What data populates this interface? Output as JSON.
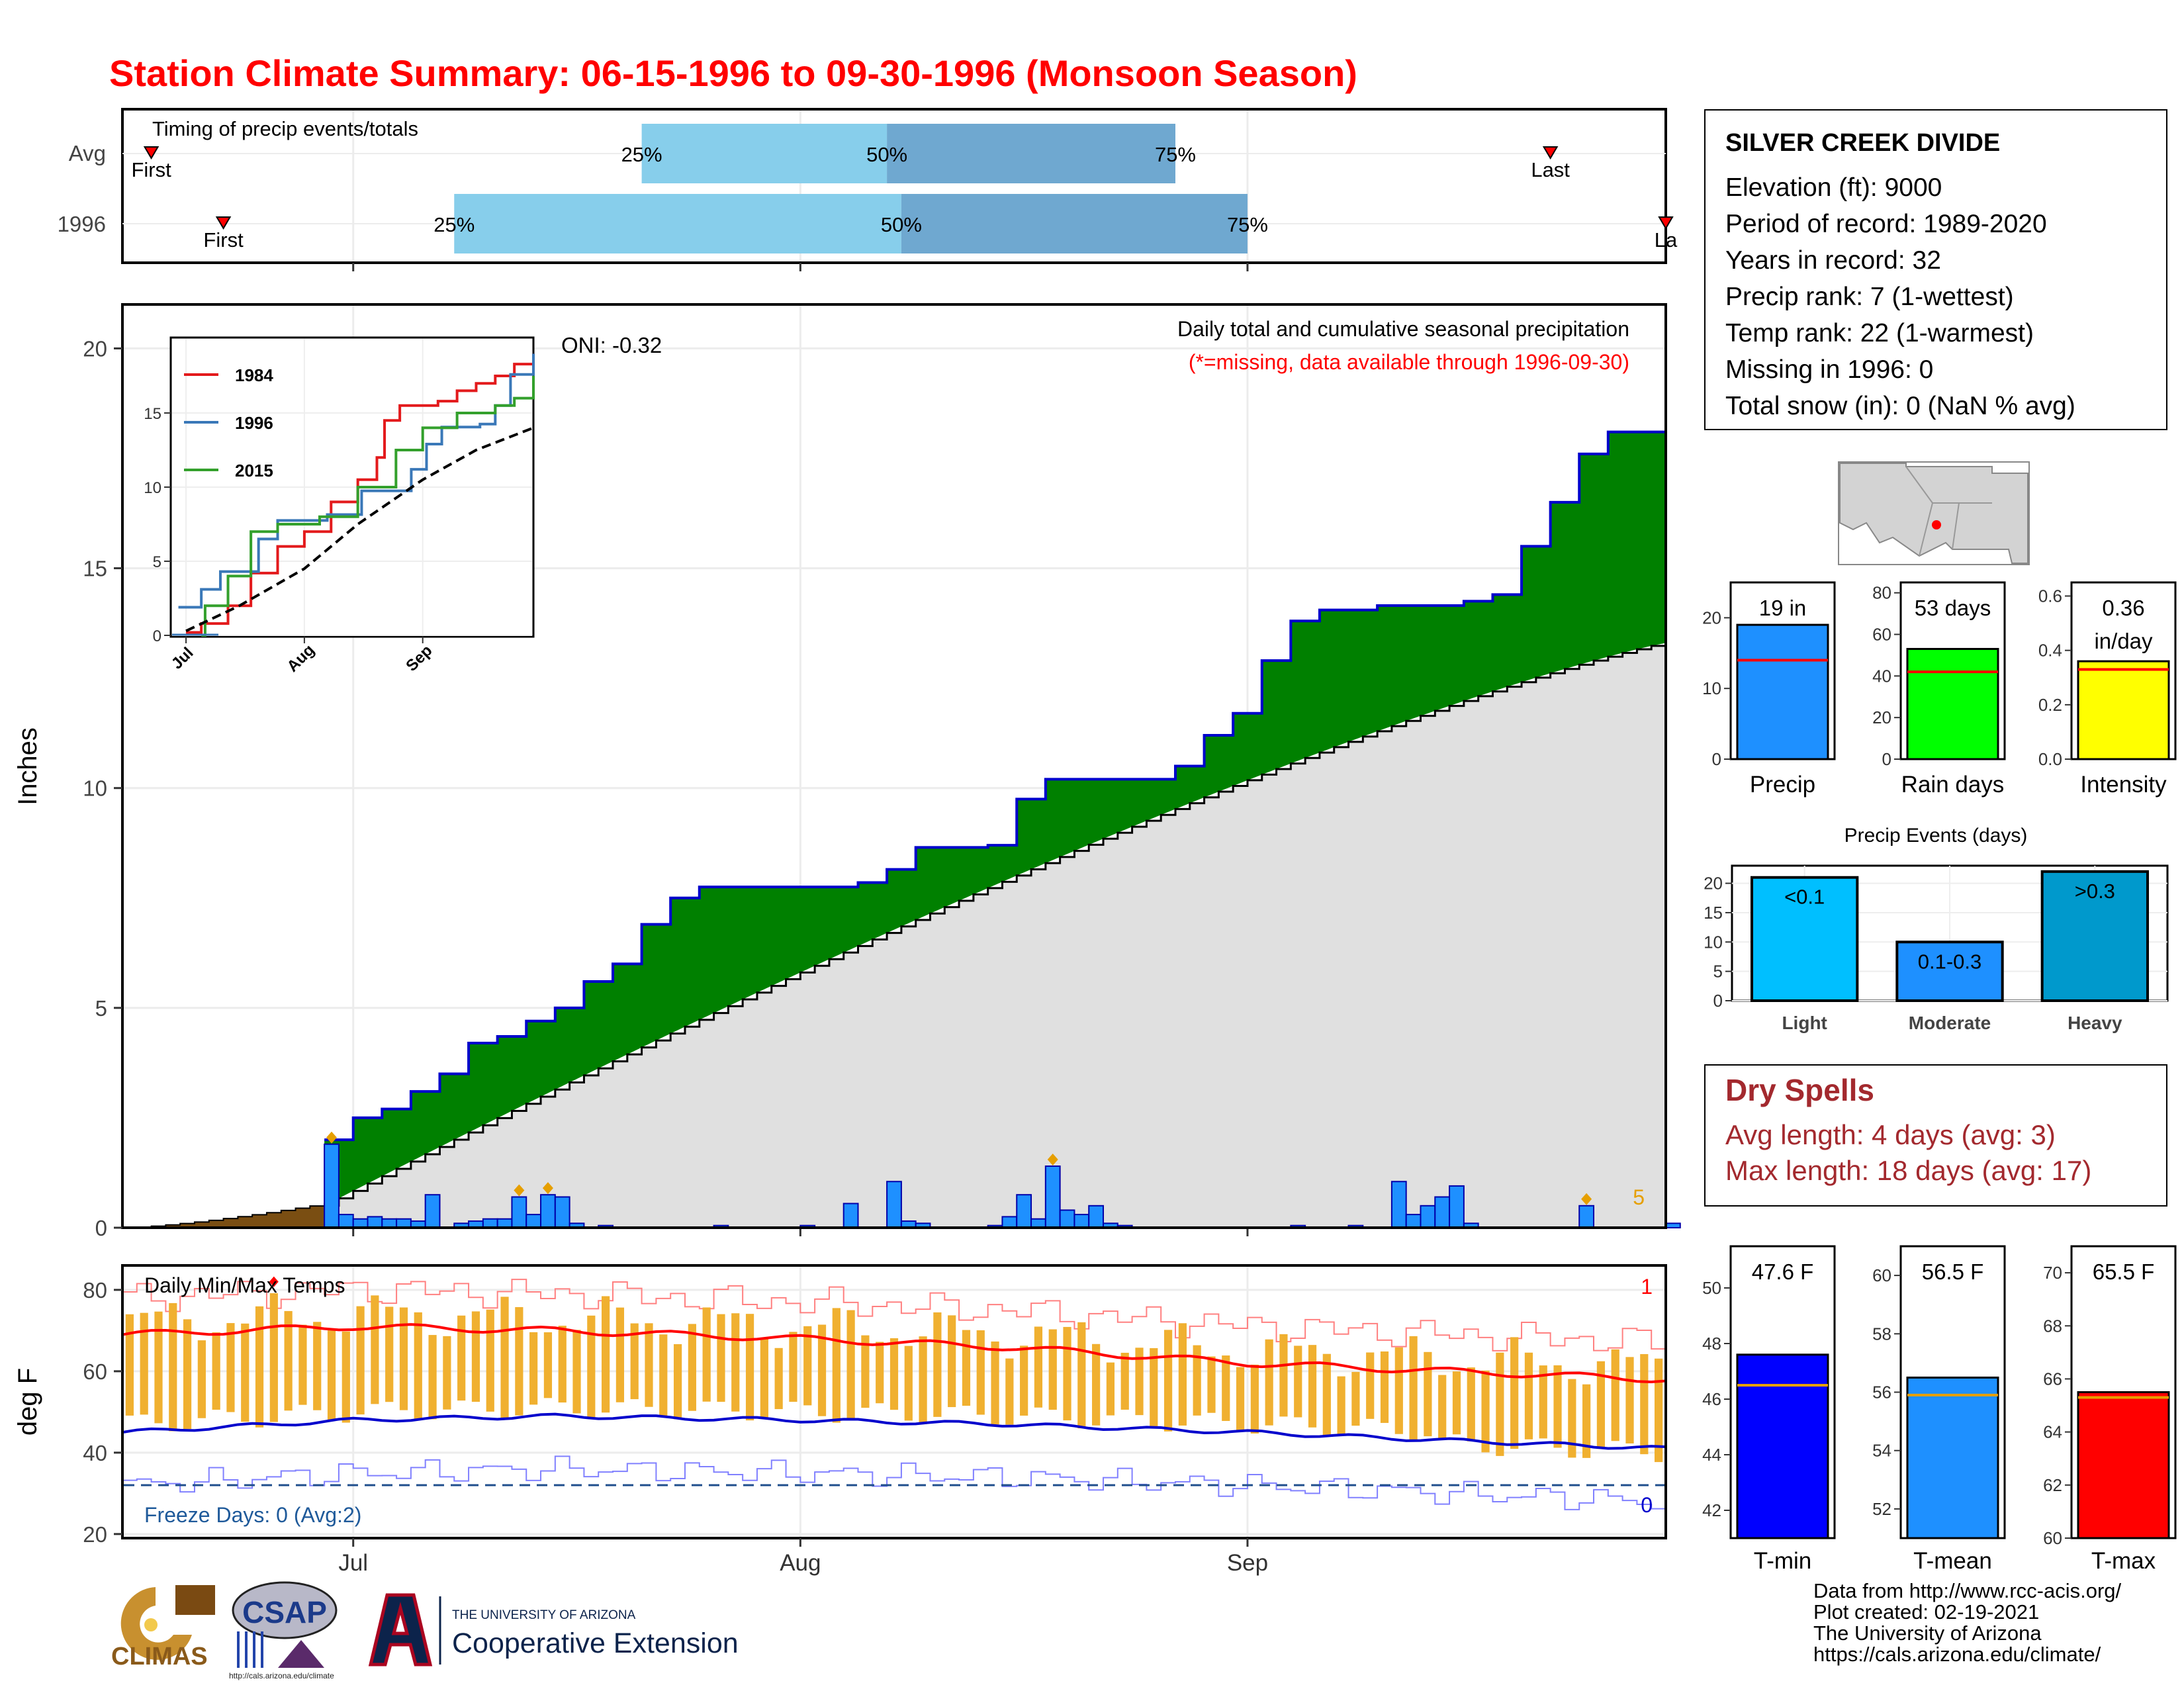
{
  "title": "Station Climate Summary: 06-15-1996 to 09-30-1996 (Monsoon Season)",
  "colors": {
    "title": "#ff0000",
    "green": "#008000",
    "blue_outline": "#0000cc",
    "avg_fill": "#e0e0e0",
    "bar_blue": "#1e90ff",
    "brown": "#7a4e12",
    "light_blue": "#87ceeb",
    "mid_blue": "#6fa8d0",
    "tmax_line": "#ff0000",
    "tmin_line": "#0000cc",
    "temp_bar": "#f0b030",
    "dry_red": "#a3292e"
  },
  "timing": {
    "title": "Timing of precip events/totals",
    "rows": [
      "Avg",
      "1996"
    ],
    "avg": {
      "first_date": "1996-06-17",
      "p25_date": "1996-07-21",
      "p50_date": "1996-08-07",
      "p75_date": "1996-08-27",
      "last_date": "1996-09-22",
      "first_label": "First",
      "last_label": "Last"
    },
    "y1996": {
      "first_date": "1996-06-22",
      "p25_date": "1996-07-08",
      "p50_date": "1996-08-08",
      "p75_date": "1996-09-01",
      "last_date": "1996-09-30",
      "first_label": "First",
      "last_label": "La"
    },
    "pct_labels": [
      "25%",
      "50%",
      "75%"
    ]
  },
  "precip": {
    "ylabel": "Inches",
    "subtitle": "Daily total and cumulative seasonal precipitation",
    "missing_note": "(*=missing, data available through 1996-09-30)",
    "oni": "ONI: -0.32",
    "count_label": "5",
    "yticks": [
      "0",
      "5",
      "10",
      "15",
      "20"
    ],
    "y_range": [
      0,
      21
    ],
    "avg_start": 0.5,
    "avg_end": 13.3,
    "pre_season_end": 0.55
  },
  "chart_data": [
    {
      "type": "area",
      "title": "Daily total and cumulative seasonal precipitation",
      "ylabel": "Inches",
      "xlim": [
        "1996-06-15",
        "1996-09-30"
      ],
      "ylim": [
        0,
        21
      ],
      "cumulative_1996": [
        [
          "1996-06-29",
          2.0
        ],
        [
          "1996-07-01",
          2.5
        ],
        [
          "1996-07-03",
          2.7
        ],
        [
          "1996-07-05",
          3.1
        ],
        [
          "1996-07-07",
          3.5
        ],
        [
          "1996-07-09",
          4.2
        ],
        [
          "1996-07-11",
          4.35
        ],
        [
          "1996-07-13",
          4.7
        ],
        [
          "1996-07-15",
          5.0
        ],
        [
          "1996-07-17",
          5.6
        ],
        [
          "1996-07-19",
          6.0
        ],
        [
          "1996-07-21",
          6.9
        ],
        [
          "1996-07-23",
          7.5
        ],
        [
          "1996-07-25",
          7.75
        ],
        [
          "1996-08-05",
          7.85
        ],
        [
          "1996-08-07",
          8.15
        ],
        [
          "1996-08-09",
          8.65
        ],
        [
          "1996-08-14",
          8.7
        ],
        [
          "1996-08-16",
          9.75
        ],
        [
          "1996-08-18",
          10.2
        ],
        [
          "1996-08-27",
          10.5
        ],
        [
          "1996-08-29",
          11.2
        ],
        [
          "1996-08-31",
          11.7
        ],
        [
          "1996-09-02",
          12.9
        ],
        [
          "1996-09-04",
          13.8
        ],
        [
          "1996-09-06",
          14.05
        ],
        [
          "1996-09-10",
          14.15
        ],
        [
          "1996-09-16",
          14.25
        ],
        [
          "1996-09-18",
          14.4
        ],
        [
          "1996-09-20",
          15.5
        ],
        [
          "1996-09-22",
          16.5
        ],
        [
          "1996-09-24",
          17.6
        ],
        [
          "1996-09-26",
          18.1
        ],
        [
          "1996-09-30",
          19.0
        ]
      ],
      "daily_1996": [
        [
          "1996-06-29",
          1.9
        ],
        [
          "1996-06-30",
          0.3
        ],
        [
          "1996-07-01",
          0.2
        ],
        [
          "1996-07-02",
          0.25
        ],
        [
          "1996-07-03",
          0.2
        ],
        [
          "1996-07-04",
          0.2
        ],
        [
          "1996-07-05",
          0.15
        ],
        [
          "1996-07-06",
          0.75
        ],
        [
          "1996-07-08",
          0.1
        ],
        [
          "1996-07-09",
          0.15
        ],
        [
          "1996-07-10",
          0.2
        ],
        [
          "1996-07-11",
          0.2
        ],
        [
          "1996-07-12",
          0.7
        ],
        [
          "1996-07-13",
          0.3
        ],
        [
          "1996-07-14",
          0.75
        ],
        [
          "1996-07-15",
          0.7
        ],
        [
          "1996-07-16",
          0.1
        ],
        [
          "1996-07-18",
          0.05
        ],
        [
          "1996-07-26",
          0.05
        ],
        [
          "1996-08-01",
          0.05
        ],
        [
          "1996-08-04",
          0.55
        ],
        [
          "1996-08-07",
          1.05
        ],
        [
          "1996-08-08",
          0.15
        ],
        [
          "1996-08-09",
          0.1
        ],
        [
          "1996-08-14",
          0.05
        ],
        [
          "1996-08-15",
          0.25
        ],
        [
          "1996-08-16",
          0.75
        ],
        [
          "1996-08-17",
          0.2
        ],
        [
          "1996-08-18",
          1.4
        ],
        [
          "1996-08-19",
          0.4
        ],
        [
          "1996-08-20",
          0.3
        ],
        [
          "1996-08-21",
          0.5
        ],
        [
          "1996-08-22",
          0.1
        ],
        [
          "1996-08-23",
          0.05
        ],
        [
          "1996-09-04",
          0.05
        ],
        [
          "1996-09-08",
          0.05
        ],
        [
          "1996-09-11",
          1.05
        ],
        [
          "1996-09-12",
          0.3
        ],
        [
          "1996-09-13",
          0.5
        ],
        [
          "1996-09-14",
          0.7
        ],
        [
          "1996-09-15",
          0.95
        ],
        [
          "1996-09-16",
          0.1
        ],
        [
          "1996-09-24",
          0.5
        ],
        [
          "1996-09-30",
          0.1
        ]
      ],
      "average_cumulative": [
        [
          "1996-06-29",
          0.5
        ],
        [
          "1996-09-30",
          13.3
        ]
      ]
    },
    {
      "type": "line",
      "xlabel": "",
      "ylabel": "",
      "ylim": [
        0,
        20
      ],
      "x_ticks": [
        "Jul",
        "Aug",
        "Sep"
      ],
      "y_ticks": [
        "0",
        "5",
        "10",
        "15"
      ],
      "legend": [
        "1984",
        "1996",
        "2015"
      ],
      "series": [
        {
          "name": "1984",
          "color": "#e31a1c",
          "values": [
            [
              "1996-07-01",
              0.2
            ],
            [
              "1996-07-05",
              0.8
            ],
            [
              "1996-07-12",
              2.0
            ],
            [
              "1996-07-18",
              4.2
            ],
            [
              "1996-07-25",
              6.0
            ],
            [
              "1996-08-01",
              7.0
            ],
            [
              "1996-08-08",
              9.0
            ],
            [
              "1996-08-15",
              10.5
            ],
            [
              "1996-08-20",
              12.0
            ],
            [
              "1996-08-22",
              14.5
            ],
            [
              "1996-08-26",
              15.5
            ],
            [
              "1996-09-05",
              15.8
            ],
            [
              "1996-09-10",
              16.5
            ],
            [
              "1996-09-15",
              17.0
            ],
            [
              "1996-09-20",
              17.5
            ],
            [
              "1996-09-25",
              18.3
            ],
            [
              "1996-09-30",
              19.0
            ]
          ]
        },
        {
          "name": "1996",
          "color": "#3a78b8",
          "values": [
            [
              "1996-06-29",
              1.9
            ],
            [
              "1996-07-05",
              3.1
            ],
            [
              "1996-07-10",
              4.3
            ],
            [
              "1996-07-20",
              6.5
            ],
            [
              "1996-07-25",
              7.75
            ],
            [
              "1996-08-07",
              8.15
            ],
            [
              "1996-08-16",
              9.75
            ],
            [
              "1996-08-29",
              11.2
            ],
            [
              "1996-09-02",
              12.9
            ],
            [
              "1996-09-06",
              14.05
            ],
            [
              "1996-09-16",
              14.25
            ],
            [
              "1996-09-20",
              15.5
            ],
            [
              "1996-09-24",
              17.6
            ],
            [
              "1996-09-30",
              19.0
            ]
          ]
        },
        {
          "name": "2015",
          "color": "#33a02c",
          "values": [
            [
              "1996-07-05",
              0.0
            ],
            [
              "1996-07-06",
              2.0
            ],
            [
              "1996-07-12",
              4.0
            ],
            [
              "1996-07-18",
              7.0
            ],
            [
              "1996-07-25",
              7.5
            ],
            [
              "1996-08-05",
              8.0
            ],
            [
              "1996-08-15",
              10.0
            ],
            [
              "1996-08-25",
              12.5
            ],
            [
              "1996-09-01",
              14.0
            ],
            [
              "1996-09-10",
              15.0
            ],
            [
              "1996-09-20",
              15.5
            ],
            [
              "1996-09-25",
              16.0
            ],
            [
              "1996-09-30",
              17.5
            ]
          ]
        },
        {
          "name": "",
          "color": "#000000",
          "values": [
            [
              "1996-07-01",
              0.3
            ],
            [
              "1996-07-15",
              2.0
            ],
            [
              "1996-08-01",
              4.5
            ],
            [
              "1996-08-15",
              7.5
            ],
            [
              "1996-09-01",
              10.5
            ],
            [
              "1996-09-15",
              12.5
            ],
            [
              "1996-09-30",
              14.0
            ]
          ]
        }
      ]
    },
    {
      "type": "bar",
      "title": "",
      "categories": [
        "Precip",
        "Rain days",
        "Intensity"
      ],
      "values": [
        19,
        53,
        0.36
      ],
      "value_labels": [
        "19 in",
        "53 days",
        "0.36 in/day"
      ],
      "averages": [
        14,
        42,
        0.33
      ],
      "ylims": [
        [
          0,
          25
        ],
        [
          0,
          85
        ],
        [
          0,
          0.65
        ]
      ],
      "yticks": [
        [
          "0",
          "10",
          "20"
        ],
        [
          "0",
          "20",
          "40",
          "60",
          "80"
        ],
        [
          "0.0",
          "0.2",
          "0.4",
          "0.6"
        ]
      ]
    },
    {
      "type": "bar",
      "title": "Precip Events (days)",
      "categories": [
        "Light",
        "Moderate",
        "Heavy"
      ],
      "bar_labels": [
        "<0.1",
        "0.1-0.3",
        ">0.3"
      ],
      "values": [
        21,
        10,
        22
      ],
      "ylim": [
        0,
        23
      ],
      "yticks": [
        "0",
        "5",
        "10",
        "15",
        "20"
      ]
    },
    {
      "type": "bar",
      "title": "",
      "categories": [
        "T-min",
        "T-mean",
        "T-max"
      ],
      "values": [
        47.6,
        56.5,
        65.5
      ],
      "value_labels": [
        "47.6 F",
        "56.5 F",
        "65.5 F"
      ],
      "averages": [
        46.5,
        55.9,
        65.3
      ],
      "ylims": [
        [
          41,
          51.5
        ],
        [
          51,
          61
        ],
        [
          60,
          71
        ]
      ],
      "yticks": [
        [
          "42",
          "44",
          "46",
          "48",
          "50"
        ],
        [
          "52",
          "54",
          "56",
          "58",
          "60"
        ],
        [
          "60",
          "62",
          "64",
          "66",
          "68",
          "70"
        ]
      ]
    },
    {
      "type": "line",
      "title": "Daily Min/Max Temps",
      "ylabel": "deg F",
      "ylim": [
        19,
        86
      ],
      "x_ticks": [
        "Jul",
        "Aug",
        "Sep"
      ],
      "y_ticks": [
        "20",
        "40",
        "60",
        "80"
      ],
      "freeze_line": 32,
      "record_high_count": "1",
      "record_low_count": "0",
      "series": [
        {
          "name": "",
          "values": [
            [
              "1996-06-15",
              69
            ],
            [
              "1996-07-01",
              71
            ],
            [
              "1996-07-15",
              70
            ],
            [
              "1996-08-01",
              68
            ],
            [
              "1996-08-15",
              66
            ],
            [
              "1996-09-01",
              62
            ],
            [
              "1996-09-15",
              60
            ],
            [
              "1996-09-30",
              58
            ]
          ]
        },
        {
          "name": "",
          "values": [
            [
              "1996-06-15",
              45
            ],
            [
              "1996-07-01",
              48
            ],
            [
              "1996-07-15",
              49
            ],
            [
              "1996-08-01",
              48
            ],
            [
              "1996-08-15",
              47
            ],
            [
              "1996-09-01",
              45
            ],
            [
              "1996-09-15",
              43
            ],
            [
              "1996-09-30",
              41
            ]
          ]
        }
      ]
    }
  ],
  "inset": {
    "xticks": [
      "Jul",
      "Aug",
      "Sep"
    ],
    "yticks": [
      "0",
      "5",
      "10",
      "15"
    ],
    "legend": [
      "1984",
      "1996",
      "2015"
    ]
  },
  "temps": {
    "ylabel": "deg F",
    "title": "Daily Min/Max Temps",
    "freeze_label": "Freeze Days: 0 (Avg:2)",
    "high_count": "1",
    "low_count": "0",
    "xticks": [
      "Jul",
      "Aug",
      "Sep"
    ],
    "yticks": [
      "20",
      "40",
      "60",
      "80"
    ]
  },
  "station": {
    "name": "SILVER CREEK DIVIDE",
    "lines": [
      "Elevation (ft): 9000",
      "Period of record: 1989-2020",
      "Years in record: 32",
      "Precip rank: 7 (1-wettest)",
      "Temp rank: 22 (1-warmest)",
      "Missing in 1996: 0",
      "Total snow (in): 0 (NaN % avg)"
    ]
  },
  "dry_spells": {
    "title": "Dry Spells",
    "avg": "Avg length: 4 days (avg: 3)",
    "max": "Max length: 18 days (avg: 17)"
  },
  "credits": [
    "Data from http://www.rcc-acis.org/",
    "Plot created: 02-19-2021",
    "The University of Arizona",
    "https://cals.arizona.edu/climate/"
  ],
  "logos": {
    "climas": "CLIMAS",
    "csap": "CSAP",
    "csap_url": "http://cals.arizona.edu/climate",
    "ua_top": "THE UNIVERSITY OF ARIZONA",
    "ua_bottom": "Cooperative Extension"
  }
}
